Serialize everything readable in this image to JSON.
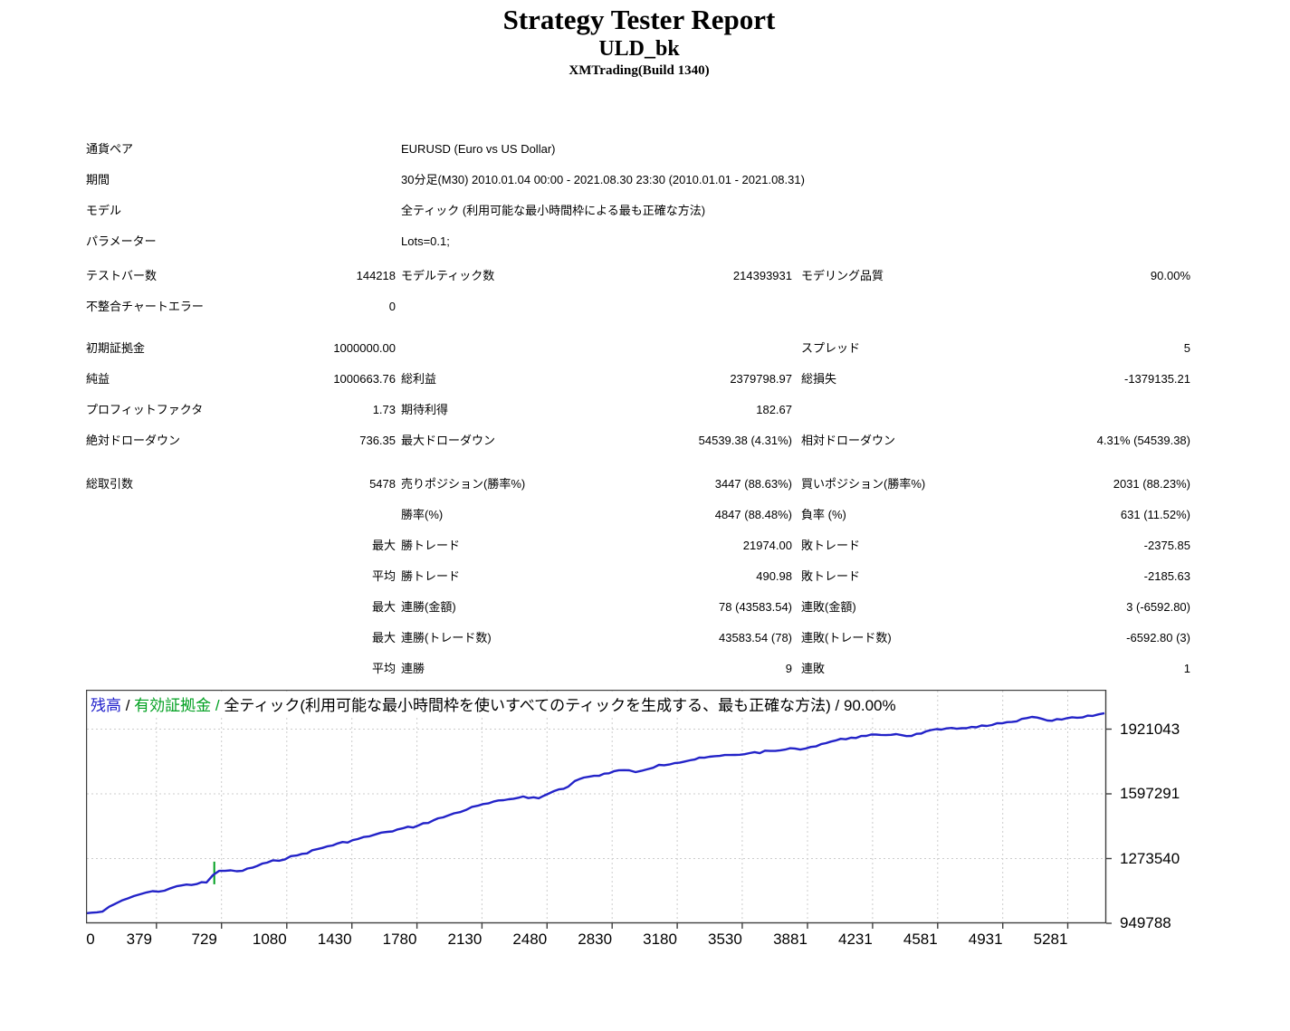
{
  "header": {
    "title": "Strategy Tester Report",
    "ea_name": "ULD_bk",
    "build": "XMTrading(Build 1340)"
  },
  "info_rows": [
    {
      "label": "通貨ペア",
      "value": "EURUSD (Euro vs US Dollar)"
    },
    {
      "label": "期間",
      "value": "30分足(M30) 2010.01.04 00:00 - 2021.08.30 23:30 (2010.01.01 - 2021.08.31)"
    },
    {
      "label": "モデル",
      "value": "全ティック (利用可能な最小時間枠による最も正確な方法)"
    },
    {
      "label": "パラメーター",
      "value": "Lots=0.1;"
    }
  ],
  "stats_groups": [
    [
      [
        "テストバー数",
        "144218",
        "モデルティック数",
        "214393931",
        "モデリング品質",
        "90.00%"
      ],
      [
        "不整合チャートエラー",
        "0",
        "",
        "",
        "",
        ""
      ]
    ],
    [
      [
        "初期証拠金",
        "1000000.00",
        "",
        "",
        "スプレッド",
        "5"
      ],
      [
        "純益",
        "1000663.76",
        "総利益",
        "2379798.97",
        "総損失",
        "-1379135.21"
      ],
      [
        "プロフィットファクタ",
        "1.73",
        "期待利得",
        "182.67",
        "",
        ""
      ],
      [
        "絶対ドローダウン",
        "736.35",
        "最大ドローダウン",
        "54539.38 (4.31%)",
        "相対ドローダウン",
        "4.31% (54539.38)"
      ]
    ],
    [
      [
        "総取引数",
        "5478",
        "売りポジション(勝率%)",
        "3447 (88.63%)",
        "買いポジション(勝率%)",
        "2031 (88.23%)"
      ],
      [
        "",
        "",
        "勝率(%)",
        "4847 (88.48%)",
        "負率 (%)",
        "631 (11.52%)"
      ],
      [
        "",
        "最大",
        "勝トレード",
        "21974.00",
        "敗トレード",
        "-2375.85"
      ],
      [
        "",
        "平均",
        "勝トレード",
        "490.98",
        "敗トレード",
        "-2185.63"
      ],
      [
        "",
        "最大",
        "連勝(金額)",
        "78 (43583.54)",
        "連敗(金額)",
        "3 (-6592.80)"
      ],
      [
        "",
        "最大",
        "連勝(トレード数)",
        "43583.54 (78)",
        "連敗(トレード数)",
        "-6592.80 (3)"
      ],
      [
        "",
        "平均",
        "連勝",
        "9",
        "連敗",
        "1"
      ]
    ]
  ],
  "chart_data": {
    "type": "line",
    "title": "残高 / 有効証拠金 / 全ティック(利用可能な最小時間枠を使いすべてのティックを生成する、最も正確な方法) / 90.00%",
    "legend": {
      "balance_label": "残高",
      "equity_label": "有効証拠金",
      "description": "全ティック(利用可能な最小時間枠を使いすべてのティックを生成する、最も正確な方法)",
      "quality": "90.00%",
      "separator": " / "
    },
    "xlabel": "",
    "ylabel": "",
    "grid": true,
    "x_ticks": [
      0,
      379,
      729,
      1080,
      1430,
      1780,
      2130,
      2480,
      2830,
      3180,
      3530,
      3881,
      4231,
      4581,
      4931,
      5281
    ],
    "y_ticks": [
      1921043,
      1597291,
      1273540,
      949788
    ],
    "x_range": [
      0,
      5617
    ],
    "y_range": [
      949788,
      2127068
    ],
    "colors": {
      "balance_line": "#2323c8",
      "equity_line": "#00a020",
      "balance_label_text": "#2222cc",
      "equity_label_text": "#00a020",
      "grid_line": "#cccccc",
      "axis": "#404040",
      "tick_text": "#000000"
    },
    "series": [
      {
        "name": "残高",
        "points": [
          [
            0,
            1000000
          ],
          [
            88,
            1008000
          ],
          [
            161,
            1049000
          ],
          [
            258,
            1086000
          ],
          [
            326,
            1104000
          ],
          [
            390,
            1108000
          ],
          [
            487,
            1135000
          ],
          [
            648,
            1154000
          ],
          [
            682,
            1190000
          ],
          [
            716,
            1212000
          ],
          [
            842,
            1212000
          ],
          [
            974,
            1253000
          ],
          [
            1134,
            1289000
          ],
          [
            1300,
            1335000
          ],
          [
            1461,
            1371000
          ],
          [
            1621,
            1407000
          ],
          [
            1787,
            1439000
          ],
          [
            1948,
            1489000
          ],
          [
            2108,
            1538000
          ],
          [
            2274,
            1570000
          ],
          [
            2352,
            1584000
          ],
          [
            2435,
            1575000
          ],
          [
            2517,
            1611000
          ],
          [
            2595,
            1634000
          ],
          [
            2629,
            1661000
          ],
          [
            2678,
            1679000
          ],
          [
            2761,
            1688000
          ],
          [
            2839,
            1710000
          ],
          [
            2922,
            1715000
          ],
          [
            2956,
            1706000
          ],
          [
            3082,
            1742000
          ],
          [
            3165,
            1751000
          ],
          [
            3248,
            1765000
          ],
          [
            3326,
            1778000
          ],
          [
            3409,
            1787000
          ],
          [
            3491,
            1792000
          ],
          [
            3569,
            1801000
          ],
          [
            3735,
            1815000
          ],
          [
            3813,
            1824000
          ],
          [
            3871,
            1824000
          ],
          [
            3954,
            1846000
          ],
          [
            4032,
            1864000
          ],
          [
            4115,
            1878000
          ],
          [
            4197,
            1887000
          ],
          [
            4275,
            1892000
          ],
          [
            4358,
            1896000
          ],
          [
            4441,
            1887000
          ],
          [
            4519,
            1910000
          ],
          [
            4601,
            1919000
          ],
          [
            4684,
            1923000
          ],
          [
            4762,
            1932000
          ],
          [
            4845,
            1937000
          ],
          [
            4928,
            1950000
          ],
          [
            5006,
            1960000
          ],
          [
            5088,
            1982000
          ],
          [
            5171,
            1964000
          ],
          [
            5249,
            1969000
          ],
          [
            5332,
            1978000
          ],
          [
            5415,
            1987000
          ],
          [
            5478,
            2000664
          ]
        ]
      },
      {
        "name": "有効証拠金",
        "style": "spike",
        "points": [
          [
            690,
            1258000
          ],
          [
            690,
            1145000
          ]
        ]
      }
    ]
  }
}
